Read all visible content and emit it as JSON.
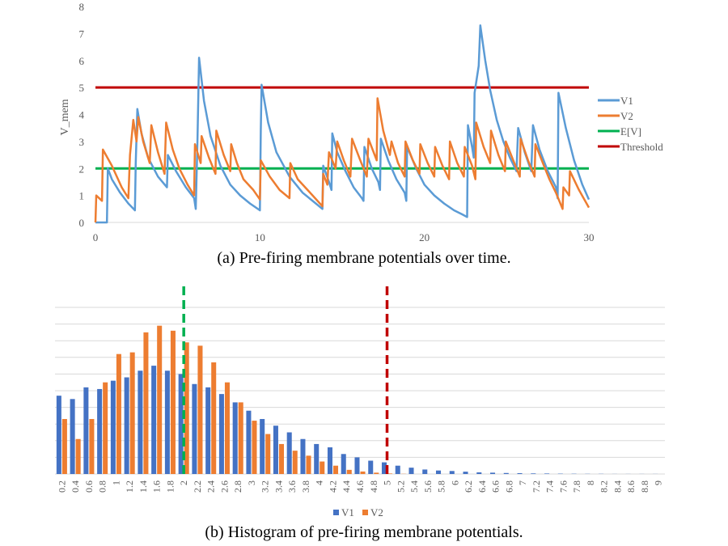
{
  "chart_data": [
    {
      "type": "line",
      "title": "",
      "caption": "(a) Pre-firing membrane potentials over time.",
      "xlabel": "",
      "ylabel": "V_mem",
      "xlim": [
        0,
        30
      ],
      "ylim": [
        0,
        8
      ],
      "x_ticks": [
        "0",
        "10",
        "20",
        "30"
      ],
      "y_ticks": [
        "0",
        "1",
        "2",
        "3",
        "4",
        "5",
        "6",
        "7",
        "8"
      ],
      "grid": false,
      "legend_position": "right",
      "series": [
        {
          "name": "V1",
          "color": "#5b9bd5",
          "points": [
            [
              0,
              0
            ],
            [
              0.7,
              0
            ],
            [
              0.75,
              2.0
            ],
            [
              1.0,
              1.6
            ],
            [
              1.5,
              1.1
            ],
            [
              2.0,
              0.7
            ],
            [
              2.4,
              0.45
            ],
            [
              2.45,
              2.2
            ],
            [
              2.55,
              4.2
            ],
            [
              2.8,
              3.3
            ],
            [
              3.2,
              2.4
            ],
            [
              3.8,
              1.7
            ],
            [
              4.35,
              1.3
            ],
            [
              4.4,
              2.5
            ],
            [
              4.9,
              1.9
            ],
            [
              5.5,
              1.3
            ],
            [
              6.0,
              0.9
            ],
            [
              6.1,
              0.5
            ],
            [
              6.2,
              3.0
            ],
            [
              6.3,
              6.1
            ],
            [
              6.6,
              4.5
            ],
            [
              7.0,
              3.2
            ],
            [
              7.6,
              2.1
            ],
            [
              8.2,
              1.4
            ],
            [
              8.8,
              1.0
            ],
            [
              9.4,
              0.7
            ],
            [
              10.0,
              0.45
            ],
            [
              10.05,
              3.4
            ],
            [
              10.1,
              5.1
            ],
            [
              10.5,
              3.7
            ],
            [
              11.0,
              2.6
            ],
            [
              11.8,
              1.7
            ],
            [
              12.6,
              1.1
            ],
            [
              13.4,
              0.7
            ],
            [
              13.8,
              0.5
            ],
            [
              13.85,
              2.1
            ],
            [
              14.2,
              1.5
            ],
            [
              14.35,
              1.2
            ],
            [
              14.4,
              3.3
            ],
            [
              14.7,
              2.6
            ],
            [
              15.2,
              1.9
            ],
            [
              15.7,
              1.3
            ],
            [
              16.2,
              0.9
            ],
            [
              16.3,
              0.8
            ],
            [
              16.35,
              2.8
            ],
            [
              16.8,
              2.0
            ],
            [
              17.2,
              1.5
            ],
            [
              17.3,
              1.2
            ],
            [
              17.35,
              3.1
            ],
            [
              17.8,
              2.3
            ],
            [
              18.3,
              1.6
            ],
            [
              18.8,
              1.1
            ],
            [
              18.9,
              0.8
            ],
            [
              18.95,
              2.8
            ],
            [
              19.5,
              2.0
            ],
            [
              20.0,
              1.4
            ],
            [
              20.6,
              1.0
            ],
            [
              21.2,
              0.7
            ],
            [
              21.8,
              0.45
            ],
            [
              22.3,
              0.3
            ],
            [
              22.6,
              0.2
            ],
            [
              22.65,
              3.6
            ],
            [
              22.9,
              2.8
            ],
            [
              23.0,
              2.4
            ],
            [
              23.05,
              4.8
            ],
            [
              23.3,
              5.8
            ],
            [
              23.4,
              7.3
            ],
            [
              23.7,
              6.0
            ],
            [
              24.0,
              4.9
            ],
            [
              24.4,
              3.8
            ],
            [
              24.8,
              3.0
            ],
            [
              25.2,
              2.4
            ],
            [
              25.6,
              1.9
            ],
            [
              25.7,
              3.5
            ],
            [
              26.1,
              2.6
            ],
            [
              26.5,
              1.9
            ],
            [
              26.6,
              3.6
            ],
            [
              27.0,
              2.7
            ],
            [
              27.5,
              1.9
            ],
            [
              28.0,
              1.3
            ],
            [
              28.1,
              0.9
            ],
            [
              28.15,
              4.8
            ],
            [
              28.6,
              3.5
            ],
            [
              29.1,
              2.3
            ],
            [
              29.6,
              1.4
            ],
            [
              30,
              0.85
            ]
          ]
        },
        {
          "name": "V2",
          "color": "#ed7d31",
          "points": [
            [
              0,
              0
            ],
            [
              0.05,
              1.0
            ],
            [
              0.4,
              0.8
            ],
            [
              0.45,
              2.7
            ],
            [
              1.0,
              2.1
            ],
            [
              1.6,
              1.3
            ],
            [
              2.0,
              0.9
            ],
            [
              2.1,
              2.5
            ],
            [
              2.3,
              3.8
            ],
            [
              2.5,
              3.0
            ],
            [
              2.6,
              3.9
            ],
            [
              2.9,
              3.0
            ],
            [
              3.3,
              2.2
            ],
            [
              3.4,
              3.6
            ],
            [
              3.8,
              2.6
            ],
            [
              4.2,
              1.8
            ],
            [
              4.3,
              3.7
            ],
            [
              4.7,
              2.7
            ],
            [
              5.1,
              2.0
            ],
            [
              5.6,
              1.4
            ],
            [
              6.0,
              1.0
            ],
            [
              6.05,
              2.9
            ],
            [
              6.4,
              2.2
            ],
            [
              6.45,
              3.2
            ],
            [
              6.9,
              2.4
            ],
            [
              7.3,
              1.8
            ],
            [
              7.35,
              3.4
            ],
            [
              7.8,
              2.5
            ],
            [
              8.2,
              1.9
            ],
            [
              8.25,
              2.9
            ],
            [
              8.6,
              2.2
            ],
            [
              9.0,
              1.6
            ],
            [
              9.6,
              1.2
            ],
            [
              10.0,
              0.85
            ],
            [
              10.05,
              2.3
            ],
            [
              10.6,
              1.7
            ],
            [
              11.2,
              1.2
            ],
            [
              11.8,
              0.9
            ],
            [
              11.85,
              2.2
            ],
            [
              12.3,
              1.6
            ],
            [
              12.9,
              1.2
            ],
            [
              13.8,
              0.6
            ],
            [
              13.85,
              1.8
            ],
            [
              14.1,
              1.4
            ],
            [
              14.2,
              2.6
            ],
            [
              14.6,
              2.0
            ],
            [
              14.7,
              3.0
            ],
            [
              15.1,
              2.3
            ],
            [
              15.5,
              1.7
            ],
            [
              15.6,
              3.1
            ],
            [
              16.1,
              2.3
            ],
            [
              16.5,
              1.7
            ],
            [
              16.6,
              3.1
            ],
            [
              17.1,
              2.3
            ],
            [
              17.15,
              4.6
            ],
            [
              17.5,
              3.4
            ],
            [
              17.9,
              2.5
            ],
            [
              18.0,
              3.0
            ],
            [
              18.4,
              2.2
            ],
            [
              18.8,
              1.7
            ],
            [
              18.85,
              3.0
            ],
            [
              19.3,
              2.3
            ],
            [
              19.7,
              1.8
            ],
            [
              19.75,
              2.9
            ],
            [
              20.2,
              2.2
            ],
            [
              20.6,
              1.7
            ],
            [
              20.65,
              2.8
            ],
            [
              21.1,
              2.1
            ],
            [
              21.5,
              1.6
            ],
            [
              21.55,
              3.0
            ],
            [
              22.0,
              2.2
            ],
            [
              22.4,
              1.7
            ],
            [
              22.45,
              2.8
            ],
            [
              22.9,
              2.1
            ],
            [
              23.1,
              1.6
            ],
            [
              23.15,
              3.7
            ],
            [
              23.6,
              2.8
            ],
            [
              24.0,
              2.2
            ],
            [
              24.05,
              3.4
            ],
            [
              24.5,
              2.5
            ],
            [
              24.9,
              1.9
            ],
            [
              24.95,
              3.0
            ],
            [
              25.4,
              2.3
            ],
            [
              25.8,
              1.7
            ],
            [
              25.85,
              3.1
            ],
            [
              26.3,
              2.3
            ],
            [
              26.7,
              1.7
            ],
            [
              26.75,
              2.9
            ],
            [
              27.2,
              2.2
            ],
            [
              27.6,
              1.6
            ],
            [
              28.0,
              1.1
            ],
            [
              28.4,
              0.5
            ],
            [
              28.45,
              1.3
            ],
            [
              28.8,
              1.0
            ],
            [
              28.85,
              1.9
            ],
            [
              29.4,
              1.2
            ],
            [
              30,
              0.55
            ]
          ]
        },
        {
          "name": "E[V]",
          "color": "#00b050",
          "points": [
            [
              0,
              2
            ],
            [
              30,
              2
            ]
          ]
        },
        {
          "name": "Threshold",
          "color": "#c00000",
          "points": [
            [
              0,
              5
            ],
            [
              30,
              5
            ]
          ]
        }
      ]
    },
    {
      "type": "bar",
      "title": "",
      "caption": "(b) Histogram of pre-firing membrane potentials.",
      "xlabel": "",
      "ylabel": "",
      "ylim": [
        0,
        100
      ],
      "grid": true,
      "legend_position": "bottom",
      "categories": [
        "0.2",
        "0.4",
        "0.6",
        "0.8",
        "1",
        "1.2",
        "1.4",
        "1.6",
        "1.8",
        "2",
        "2.2",
        "2.4",
        "2.6",
        "2.8",
        "3",
        "3.2",
        "3.4",
        "3.6",
        "3.8",
        "4",
        "4.2",
        "4.4",
        "4.6",
        "4.8",
        "5",
        "5.2",
        "5.4",
        "5.6",
        "5.8",
        "6",
        "6.2",
        "6.4",
        "6.6",
        "6.8",
        "7",
        "7.2",
        "7.4",
        "7.6",
        "7.8",
        "8",
        "8.2",
        "8.4",
        "8.6",
        "8.8",
        "9"
      ],
      "series": [
        {
          "name": "V1",
          "color": "#4472c4",
          "values": [
            47,
            45,
            52,
            51,
            56,
            58,
            62,
            65,
            62,
            60,
            54,
            52,
            48,
            43,
            38,
            33,
            29,
            25,
            21,
            18,
            16,
            12,
            10,
            8,
            7,
            5,
            3.8,
            2.7,
            2.1,
            1.8,
            1.4,
            1.0,
            0.8,
            0.6,
            0.5,
            0.35,
            0.3,
            0.2,
            0.15,
            0.1,
            0.1,
            0.05,
            0.05,
            0.05,
            0.05
          ]
        },
        {
          "name": "V2",
          "color": "#ed7d31",
          "values": [
            33,
            21,
            33,
            55,
            72,
            73,
            85,
            89,
            86,
            79,
            77,
            67,
            55,
            43,
            32,
            24,
            18,
            14,
            11,
            7.5,
            5,
            2.5,
            1.5,
            0.8,
            0.3,
            0.1,
            0,
            0,
            0,
            0,
            0,
            0,
            0,
            0,
            0,
            0,
            0,
            0,
            0,
            0,
            0,
            0,
            0,
            0,
            0
          ]
        }
      ],
      "reference_lines": [
        {
          "name": "E[V]",
          "value": 2,
          "color": "#00b050"
        },
        {
          "name": "Threshold",
          "value": 5,
          "color": "#c00000"
        }
      ]
    }
  ]
}
